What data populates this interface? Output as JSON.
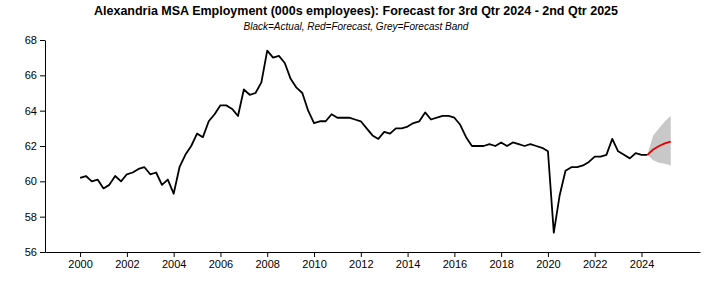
{
  "chart_data": {
    "type": "line",
    "title": "Alexandria MSA Employment (000s employees): Forecast for 3rd Qtr 2024 - 2nd Qtr 2025",
    "subtitle": "Black=Actual, Red=Forecast, Grey=Forecast Band",
    "x": [
      2000,
      2000.25,
      2000.5,
      2000.75,
      2001,
      2001.25,
      2001.5,
      2001.75,
      2002,
      2002.25,
      2002.5,
      2002.75,
      2003,
      2003.25,
      2003.5,
      2003.75,
      2004,
      2004.25,
      2004.5,
      2004.75,
      2005,
      2005.25,
      2005.5,
      2005.75,
      2006,
      2006.25,
      2006.5,
      2006.75,
      2007,
      2007.25,
      2007.5,
      2007.75,
      2008,
      2008.25,
      2008.5,
      2008.75,
      2009,
      2009.25,
      2009.5,
      2009.75,
      2010,
      2010.25,
      2010.5,
      2010.75,
      2011,
      2011.25,
      2011.5,
      2011.75,
      2012,
      2012.25,
      2012.5,
      2012.75,
      2013,
      2013.25,
      2013.5,
      2013.75,
      2014,
      2014.25,
      2014.5,
      2014.75,
      2015,
      2015.25,
      2015.5,
      2015.75,
      2016,
      2016.25,
      2016.5,
      2016.75,
      2017,
      2017.25,
      2017.5,
      2017.75,
      2018,
      2018.25,
      2018.5,
      2018.75,
      2019,
      2019.25,
      2019.5,
      2019.75,
      2020,
      2020.25,
      2020.5,
      2020.75,
      2021,
      2021.25,
      2021.5,
      2021.75,
      2022,
      2022.25,
      2022.5,
      2022.75,
      2023,
      2023.25,
      2023.5,
      2023.75,
      2024,
      2024.25,
      2024.5,
      2024.75,
      2025,
      2025.25
    ],
    "series": [
      {
        "type": "area",
        "color": "#c8c8c8",
        "lower": [
          null,
          null,
          null,
          null,
          null,
          null,
          null,
          null,
          null,
          null,
          null,
          null,
          null,
          null,
          null,
          null,
          null,
          null,
          null,
          null,
          null,
          null,
          null,
          null,
          null,
          null,
          null,
          null,
          null,
          null,
          null,
          null,
          null,
          null,
          null,
          null,
          null,
          null,
          null,
          null,
          null,
          null,
          null,
          null,
          null,
          null,
          null,
          null,
          null,
          null,
          null,
          null,
          null,
          null,
          null,
          null,
          null,
          null,
          null,
          null,
          null,
          null,
          null,
          null,
          null,
          null,
          null,
          null,
          null,
          null,
          null,
          null,
          null,
          null,
          null,
          null,
          null,
          null,
          null,
          null,
          null,
          null,
          null,
          null,
          null,
          null,
          null,
          null,
          null,
          null,
          null,
          null,
          null,
          null,
          null,
          null,
          null,
          61.5,
          61.2,
          61.05,
          61.0,
          60.9
        ],
        "upper": [
          null,
          null,
          null,
          null,
          null,
          null,
          null,
          null,
          null,
          null,
          null,
          null,
          null,
          null,
          null,
          null,
          null,
          null,
          null,
          null,
          null,
          null,
          null,
          null,
          null,
          null,
          null,
          null,
          null,
          null,
          null,
          null,
          null,
          null,
          null,
          null,
          null,
          null,
          null,
          null,
          null,
          null,
          null,
          null,
          null,
          null,
          null,
          null,
          null,
          null,
          null,
          null,
          null,
          null,
          null,
          null,
          null,
          null,
          null,
          null,
          null,
          null,
          null,
          null,
          null,
          null,
          null,
          null,
          null,
          null,
          null,
          null,
          null,
          null,
          null,
          null,
          null,
          null,
          null,
          null,
          null,
          null,
          null,
          null,
          null,
          null,
          null,
          null,
          null,
          null,
          null,
          null,
          null,
          null,
          null,
          null,
          null,
          61.5,
          62.6,
          63.0,
          63.4,
          63.7
        ]
      },
      {
        "type": "line",
        "color": "#000000",
        "values": [
          60.2,
          60.3,
          60.0,
          60.1,
          59.6,
          59.8,
          60.3,
          60.0,
          60.4,
          60.5,
          60.7,
          60.8,
          60.4,
          60.5,
          59.8,
          60.1,
          59.3,
          60.8,
          61.5,
          62.0,
          62.7,
          62.5,
          63.4,
          63.8,
          64.3,
          64.3,
          64.1,
          63.7,
          65.2,
          64.9,
          65.0,
          65.6,
          67.4,
          67.0,
          67.1,
          66.7,
          65.8,
          65.3,
          65.0,
          64.0,
          63.3,
          63.4,
          63.4,
          63.8,
          63.6,
          63.6,
          63.6,
          63.5,
          63.4,
          63.0,
          62.6,
          62.4,
          62.8,
          62.7,
          63.0,
          63.0,
          63.1,
          63.3,
          63.4,
          63.9,
          63.5,
          63.6,
          63.7,
          63.7,
          63.6,
          63.2,
          62.5,
          62.0,
          62.0,
          62.0,
          62.1,
          62.0,
          62.2,
          62.0,
          62.2,
          62.1,
          62.0,
          62.1,
          62.0,
          61.9,
          61.7,
          57.1,
          59.2,
          60.6,
          60.8,
          60.8,
          60.9,
          61.1,
          61.4,
          61.4,
          61.5,
          62.4,
          61.7,
          61.5,
          61.3,
          61.6,
          61.5,
          61.5,
          null,
          null,
          null,
          null
        ]
      },
      {
        "type": "line",
        "color": "#e00000",
        "values": [
          null,
          null,
          null,
          null,
          null,
          null,
          null,
          null,
          null,
          null,
          null,
          null,
          null,
          null,
          null,
          null,
          null,
          null,
          null,
          null,
          null,
          null,
          null,
          null,
          null,
          null,
          null,
          null,
          null,
          null,
          null,
          null,
          null,
          null,
          null,
          null,
          null,
          null,
          null,
          null,
          null,
          null,
          null,
          null,
          null,
          null,
          null,
          null,
          null,
          null,
          null,
          null,
          null,
          null,
          null,
          null,
          null,
          null,
          null,
          null,
          null,
          null,
          null,
          null,
          null,
          null,
          null,
          null,
          null,
          null,
          null,
          null,
          null,
          null,
          null,
          null,
          null,
          null,
          null,
          null,
          null,
          null,
          null,
          null,
          null,
          null,
          null,
          null,
          null,
          null,
          null,
          null,
          null,
          null,
          null,
          null,
          null,
          61.5,
          61.8,
          62.0,
          62.15,
          62.25
        ]
      }
    ],
    "xlim": [
      1998.5,
      2026.5
    ],
    "xticks": [
      2000,
      2002,
      2004,
      2006,
      2008,
      2010,
      2012,
      2014,
      2016,
      2018,
      2020,
      2022,
      2024
    ],
    "ylim": [
      56,
      68
    ],
    "yticks": [
      56,
      58,
      60,
      62,
      64,
      66,
      68
    ],
    "grid": false
  }
}
